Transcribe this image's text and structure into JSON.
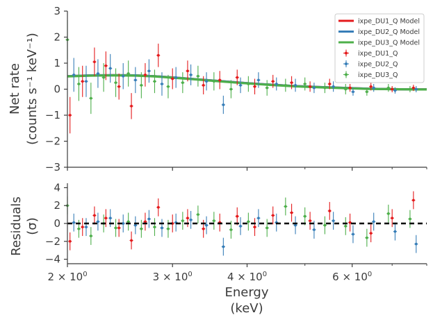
{
  "chart_data": [
    {
      "type": "scatter",
      "title": "",
      "ylabel_line1": "Net rate",
      "ylabel_line2": "(counts s⁻¹ keV⁻¹)",
      "xlim": [
        2,
        8
      ],
      "ylim": [
        -3,
        3
      ],
      "x_scale": "log",
      "grid": false,
      "legend_position": "top-right",
      "yticks": [
        -3,
        -2,
        -1,
        0,
        1,
        2,
        3
      ],
      "ytick_labels": [
        "−3",
        "−2",
        "−1",
        "0",
        "1",
        "2",
        "3"
      ],
      "models": [
        {
          "name": "ixpe_DU1_Q Model",
          "color": "#e41a1c",
          "x": [
            2.0,
            2.2,
            2.4,
            2.6,
            2.8,
            3.0,
            3.3,
            3.6,
            4.0,
            4.4,
            4.8,
            5.3,
            5.8,
            6.4,
            7.0,
            7.6,
            8.0
          ],
          "y": [
            0.5,
            0.53,
            0.54,
            0.53,
            0.5,
            0.45,
            0.38,
            0.31,
            0.23,
            0.17,
            0.12,
            0.08,
            0.05,
            0.02,
            0.0,
            -0.01,
            -0.01
          ]
        },
        {
          "name": "ixpe_DU2_Q Model",
          "color": "#377eb8",
          "x": [
            2.0,
            2.2,
            2.4,
            2.6,
            2.8,
            3.0,
            3.3,
            3.6,
            4.0,
            4.4,
            4.8,
            5.3,
            5.8,
            6.4,
            7.0,
            7.6,
            8.0
          ],
          "y": [
            0.5,
            0.53,
            0.54,
            0.53,
            0.5,
            0.45,
            0.38,
            0.31,
            0.23,
            0.17,
            0.12,
            0.08,
            0.05,
            0.02,
            0.0,
            -0.01,
            -0.01
          ]
        },
        {
          "name": "ixpe_DU3_Q Model",
          "color": "#4daf4a",
          "x": [
            2.0,
            2.2,
            2.4,
            2.6,
            2.8,
            3.0,
            3.3,
            3.6,
            4.0,
            4.4,
            4.8,
            5.3,
            5.8,
            6.4,
            7.0,
            7.6,
            8.0
          ],
          "y": [
            0.49,
            0.52,
            0.53,
            0.52,
            0.49,
            0.44,
            0.37,
            0.3,
            0.22,
            0.16,
            0.11,
            0.07,
            0.04,
            0.01,
            0.0,
            -0.01,
            -0.01
          ]
        }
      ],
      "series": [
        {
          "name": "ixpe_DU1_Q",
          "color": "#e41a1c",
          "x": [
            2.02,
            2.12,
            2.22,
            2.32,
            2.44,
            2.56,
            2.7,
            2.84,
            3.0,
            3.18,
            3.38,
            3.6,
            3.85,
            4.12,
            4.42,
            4.75,
            5.1,
            5.5,
            5.95,
            6.45,
            7.0,
            7.6
          ],
          "y": [
            -1.0,
            0.3,
            1.05,
            0.9,
            0.1,
            -0.65,
            0.55,
            1.3,
            0.4,
            0.7,
            0.15,
            0.35,
            0.45,
            0.1,
            0.3,
            0.25,
            0.1,
            0.2,
            0.05,
            0.1,
            0.0,
            0.05
          ],
          "err": [
            0.7,
            0.6,
            0.55,
            0.55,
            0.5,
            0.5,
            0.45,
            0.45,
            0.4,
            0.4,
            0.35,
            0.35,
            0.3,
            0.3,
            0.25,
            0.25,
            0.2,
            0.2,
            0.15,
            0.15,
            0.12,
            0.12
          ]
        },
        {
          "name": "ixpe_DU2_Q",
          "color": "#377eb8",
          "x": [
            2.05,
            2.15,
            2.25,
            2.36,
            2.48,
            2.6,
            2.74,
            2.88,
            3.04,
            3.22,
            3.42,
            3.65,
            3.9,
            4.18,
            4.48,
            4.82,
            5.18,
            5.58,
            6.02,
            6.52,
            7.08,
            7.68
          ],
          "y": [
            0.55,
            0.3,
            0.6,
            0.8,
            0.5,
            0.35,
            0.7,
            0.2,
            0.45,
            0.55,
            0.3,
            -0.6,
            0.15,
            0.35,
            0.2,
            0.15,
            0.05,
            0.1,
            -0.1,
            0.05,
            -0.05,
            0.0
          ],
          "err": [
            0.65,
            0.6,
            0.55,
            0.55,
            0.5,
            0.5,
            0.45,
            0.45,
            0.4,
            0.4,
            0.35,
            0.35,
            0.3,
            0.3,
            0.25,
            0.25,
            0.2,
            0.2,
            0.15,
            0.15,
            0.12,
            0.12
          ]
        },
        {
          "name": "ixpe_DU3_Q",
          "color": "#4daf4a",
          "x": [
            2.0,
            2.09,
            2.19,
            2.3,
            2.41,
            2.53,
            2.66,
            2.8,
            2.95,
            3.12,
            3.31,
            3.52,
            3.76,
            4.02,
            4.32,
            4.64,
            5.0,
            5.4,
            5.85,
            6.35,
            6.9,
            7.5
          ],
          "y": [
            1.9,
            0.2,
            -0.35,
            0.45,
            0.25,
            0.6,
            0.15,
            0.3,
            0.1,
            0.25,
            0.5,
            0.3,
            0.0,
            0.2,
            0.05,
            0.15,
            0.2,
            0.05,
            0.0,
            -0.1,
            0.05,
            0.0
          ],
          "err": [
            0.75,
            0.65,
            0.6,
            0.55,
            0.55,
            0.5,
            0.5,
            0.45,
            0.45,
            0.4,
            0.4,
            0.35,
            0.35,
            0.3,
            0.3,
            0.25,
            0.25,
            0.2,
            0.2,
            0.15,
            0.15,
            0.12
          ]
        }
      ]
    },
    {
      "type": "scatter",
      "title": "",
      "xlabel_line1": "Energy",
      "xlabel_line2": "(keV)",
      "ylabel_line1": "Residuals",
      "ylabel_line2": "(σ)",
      "xlim": [
        2,
        8
      ],
      "ylim": [
        -4.5,
        4.5
      ],
      "x_scale": "log",
      "grid": false,
      "yticks": [
        -4,
        -2,
        0,
        2,
        4
      ],
      "ytick_labels": [
        "−4",
        "−2",
        "0",
        "2",
        "4"
      ],
      "xticks": [
        2,
        3,
        4,
        6
      ],
      "xtick_labels": [
        {
          "base": "2 × 10",
          "exp": "0"
        },
        {
          "base": "3 × 10",
          "exp": "0"
        },
        {
          "base": "4 × 10",
          "exp": "0"
        },
        {
          "base": "6 × 10",
          "exp": "0"
        }
      ],
      "zero_line": 0,
      "series": [
        {
          "name": "ixpe_DU1_Q",
          "color": "#e41a1c",
          "x": [
            2.02,
            2.12,
            2.22,
            2.32,
            2.44,
            2.56,
            2.7,
            2.84,
            3.0,
            3.18,
            3.38,
            3.6,
            3.85,
            4.12,
            4.42,
            4.75,
            5.1,
            5.5,
            5.95,
            6.45,
            7.0,
            7.6
          ],
          "y": [
            -2.0,
            -0.4,
            0.9,
            0.6,
            -0.5,
            -1.9,
            0.2,
            1.8,
            0.0,
            0.6,
            -0.6,
            0.1,
            0.8,
            -0.4,
            0.9,
            1.2,
            0.3,
            1.4,
            0.1,
            -1.1,
            0.6,
            2.6
          ],
          "err": [
            1,
            1,
            1,
            1,
            1,
            1,
            1,
            1,
            1,
            1,
            1,
            1,
            1,
            1,
            1,
            1,
            1,
            1,
            1,
            1,
            1,
            1
          ]
        },
        {
          "name": "ixpe_DU2_Q",
          "color": "#377eb8",
          "x": [
            2.05,
            2.15,
            2.25,
            2.36,
            2.48,
            2.6,
            2.74,
            2.88,
            3.04,
            3.22,
            3.42,
            3.65,
            3.9,
            4.18,
            4.48,
            4.82,
            5.18,
            5.58,
            6.02,
            6.52,
            7.08,
            7.68
          ],
          "y": [
            0.1,
            -0.4,
            0.2,
            0.6,
            0.0,
            -0.2,
            0.5,
            -0.5,
            0.1,
            0.4,
            -0.2,
            -2.6,
            -0.3,
            0.6,
            0.1,
            -0.2,
            -0.7,
            0.3,
            -1.2,
            0.2,
            -0.9,
            -2.3
          ],
          "err": [
            1,
            1,
            1,
            1,
            1,
            1,
            1,
            1,
            1,
            1,
            1,
            1,
            1,
            1,
            1,
            1,
            1,
            1,
            1,
            1,
            1,
            1
          ]
        },
        {
          "name": "ixpe_DU3_Q",
          "color": "#4daf4a",
          "x": [
            2.0,
            2.09,
            2.19,
            2.3,
            2.41,
            2.53,
            2.66,
            2.8,
            2.95,
            3.12,
            3.31,
            3.52,
            3.76,
            4.02,
            4.32,
            4.64,
            5.0,
            5.4,
            5.85,
            6.35,
            6.9,
            7.5
          ],
          "y": [
            2.0,
            -0.6,
            -1.4,
            0.0,
            -0.5,
            0.2,
            -0.6,
            -0.4,
            -0.6,
            0.3,
            1.0,
            0.3,
            -0.7,
            0.2,
            -0.5,
            1.9,
            0.8,
            -0.2,
            -0.3,
            -1.6,
            1.1,
            0.5
          ],
          "err": [
            1,
            1,
            1,
            1,
            1,
            1,
            1,
            1,
            1,
            1,
            1,
            1,
            1,
            1,
            1,
            1,
            1,
            1,
            1,
            1,
            1,
            1
          ]
        }
      ]
    }
  ]
}
